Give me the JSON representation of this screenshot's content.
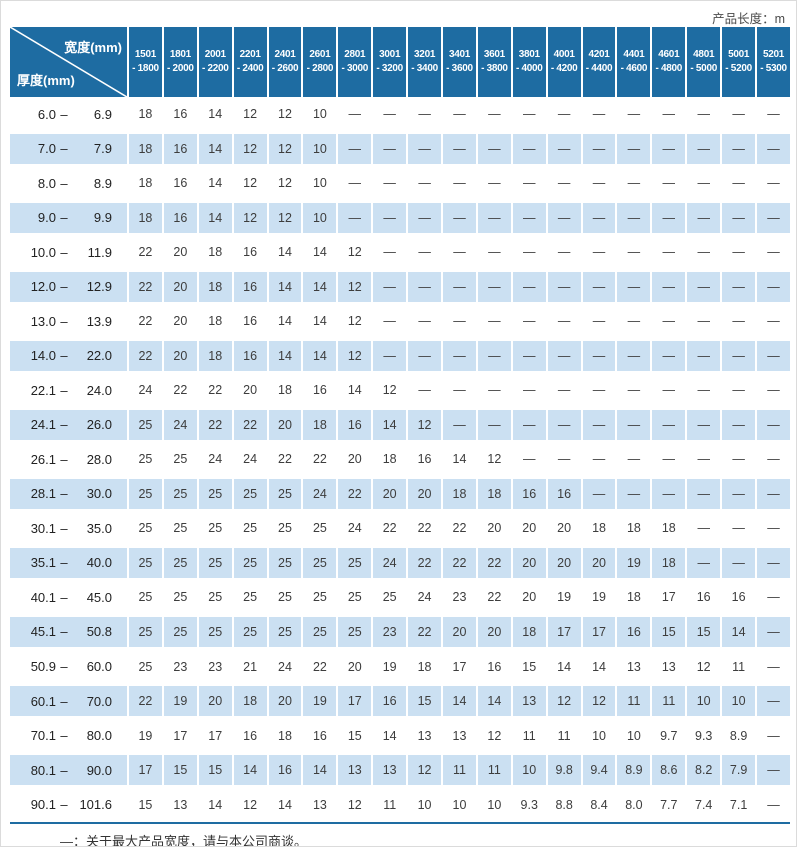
{
  "page": {
    "top_right_label": "产品长度：m",
    "footnote": "—：关于最大产品宽度，请与本公司商谈。"
  },
  "corner": {
    "top_label": "宽度(mm)",
    "bottom_label": "厚度(mm)",
    "range_separator": "–"
  },
  "colors": {
    "header_bg": "#1e6ca2",
    "alt_row_bg": "#cbe0f2",
    "cell_text": "#3d3d3d",
    "row_header_text": "#222222",
    "footnote_text": "#333333",
    "top_label_text": "#4a4a4a"
  },
  "chart_data": {
    "type": "table",
    "title": "",
    "col_axis_label": "宽度(mm)",
    "row_axis_label": "厚度(mm)",
    "unit_note": "产品长度：m",
    "columns": [
      "1501 - 1800",
      "1801 - 2000",
      "2001 - 2200",
      "2201 - 2400",
      "2401 - 2600",
      "2601 - 2800",
      "2801 - 3000",
      "3001 - 3200",
      "3201 - 3400",
      "3401 - 3600",
      "3601 - 3800",
      "3801 - 4000",
      "4001 - 4200",
      "4201 - 4400",
      "4401 - 4600",
      "4601 - 4800",
      "4801 - 5000",
      "5001 - 5200",
      "5201 - 5300"
    ],
    "rows": [
      {
        "range": "6.0 – 6.9",
        "values": [
          "18",
          "16",
          "14",
          "12",
          "12",
          "10",
          "—",
          "—",
          "—",
          "—",
          "—",
          "—",
          "—",
          "—",
          "—",
          "—",
          "—",
          "—",
          "—"
        ]
      },
      {
        "range": "7.0 – 7.9",
        "values": [
          "18",
          "16",
          "14",
          "12",
          "12",
          "10",
          "—",
          "—",
          "—",
          "—",
          "—",
          "—",
          "—",
          "—",
          "—",
          "—",
          "—",
          "—",
          "—"
        ]
      },
      {
        "range": "8.0 – 8.9",
        "values": [
          "18",
          "16",
          "14",
          "12",
          "12",
          "10",
          "—",
          "—",
          "—",
          "—",
          "—",
          "—",
          "—",
          "—",
          "—",
          "—",
          "—",
          "—",
          "—"
        ]
      },
      {
        "range": "9.0 – 9.9",
        "values": [
          "18",
          "16",
          "14",
          "12",
          "12",
          "10",
          "—",
          "—",
          "—",
          "—",
          "—",
          "—",
          "—",
          "—",
          "—",
          "—",
          "—",
          "—",
          "—"
        ]
      },
      {
        "range": "10.0 – 11.9",
        "values": [
          "22",
          "20",
          "18",
          "16",
          "14",
          "14",
          "12",
          "—",
          "—",
          "—",
          "—",
          "—",
          "—",
          "—",
          "—",
          "—",
          "—",
          "—",
          "—"
        ]
      },
      {
        "range": "12.0 – 12.9",
        "values": [
          "22",
          "20",
          "18",
          "16",
          "14",
          "14",
          "12",
          "—",
          "—",
          "—",
          "—",
          "—",
          "—",
          "—",
          "—",
          "—",
          "—",
          "—",
          "—"
        ]
      },
      {
        "range": "13.0 – 13.9",
        "values": [
          "22",
          "20",
          "18",
          "16",
          "14",
          "14",
          "12",
          "—",
          "—",
          "—",
          "—",
          "—",
          "—",
          "—",
          "—",
          "—",
          "—",
          "—",
          "—"
        ]
      },
      {
        "range": "14.0 – 22.0",
        "values": [
          "22",
          "20",
          "18",
          "16",
          "14",
          "14",
          "12",
          "—",
          "—",
          "—",
          "—",
          "—",
          "—",
          "—",
          "—",
          "—",
          "—",
          "—",
          "—"
        ]
      },
      {
        "range": "22.1 – 24.0",
        "values": [
          "24",
          "22",
          "22",
          "20",
          "18",
          "16",
          "14",
          "12",
          "—",
          "—",
          "—",
          "—",
          "—",
          "—",
          "—",
          "—",
          "—",
          "—",
          "—"
        ]
      },
      {
        "range": "24.1 – 26.0",
        "values": [
          "25",
          "24",
          "22",
          "22",
          "20",
          "18",
          "16",
          "14",
          "12",
          "—",
          "—",
          "—",
          "—",
          "—",
          "—",
          "—",
          "—",
          "—",
          "—"
        ]
      },
      {
        "range": "26.1 – 28.0",
        "values": [
          "25",
          "25",
          "24",
          "24",
          "22",
          "22",
          "20",
          "18",
          "16",
          "14",
          "12",
          "—",
          "—",
          "—",
          "—",
          "—",
          "—",
          "—",
          "—"
        ]
      },
      {
        "range": "28.1 – 30.0",
        "values": [
          "25",
          "25",
          "25",
          "25",
          "25",
          "24",
          "22",
          "20",
          "20",
          "18",
          "18",
          "16",
          "16",
          "—",
          "—",
          "—",
          "—",
          "—",
          "—"
        ]
      },
      {
        "range": "30.1 – 35.0",
        "values": [
          "25",
          "25",
          "25",
          "25",
          "25",
          "25",
          "24",
          "22",
          "22",
          "22",
          "20",
          "20",
          "20",
          "18",
          "18",
          "18",
          "—",
          "—",
          "—"
        ]
      },
      {
        "range": "35.1 – 40.0",
        "values": [
          "25",
          "25",
          "25",
          "25",
          "25",
          "25",
          "25",
          "24",
          "22",
          "22",
          "22",
          "20",
          "20",
          "20",
          "19",
          "18",
          "—",
          "—",
          "—"
        ]
      },
      {
        "range": "40.1 – 45.0",
        "values": [
          "25",
          "25",
          "25",
          "25",
          "25",
          "25",
          "25",
          "25",
          "24",
          "23",
          "22",
          "20",
          "19",
          "19",
          "18",
          "17",
          "16",
          "16",
          "—"
        ]
      },
      {
        "range": "45.1 – 50.8",
        "values": [
          "25",
          "25",
          "25",
          "25",
          "25",
          "25",
          "25",
          "23",
          "22",
          "20",
          "20",
          "18",
          "17",
          "17",
          "16",
          "15",
          "15",
          "14",
          "—"
        ]
      },
      {
        "range": "50.9 – 60.0",
        "values": [
          "25",
          "23",
          "23",
          "21",
          "24",
          "22",
          "20",
          "19",
          "18",
          "17",
          "16",
          "15",
          "14",
          "14",
          "13",
          "13",
          "12",
          "11",
          "—"
        ]
      },
      {
        "range": "60.1 – 70.0",
        "values": [
          "22",
          "19",
          "20",
          "18",
          "20",
          "19",
          "17",
          "16",
          "15",
          "14",
          "14",
          "13",
          "12",
          "12",
          "11",
          "11",
          "10",
          "10",
          "—"
        ]
      },
      {
        "range": "70.1 – 80.0",
        "values": [
          "19",
          "17",
          "17",
          "16",
          "18",
          "16",
          "15",
          "14",
          "13",
          "13",
          "12",
          "11",
          "11",
          "10",
          "10",
          "9.7",
          "9.3",
          "8.9",
          "—"
        ]
      },
      {
        "range": "80.1 – 90.0",
        "values": [
          "17",
          "15",
          "15",
          "14",
          "16",
          "14",
          "13",
          "13",
          "12",
          "11",
          "11",
          "10",
          "9.8",
          "9.4",
          "8.9",
          "8.6",
          "8.2",
          "7.9",
          "—"
        ]
      },
      {
        "range": "90.1 – 101.6",
        "values": [
          "15",
          "13",
          "14",
          "12",
          "14",
          "13",
          "12",
          "11",
          "10",
          "10",
          "10",
          "9.3",
          "8.8",
          "8.4",
          "8.0",
          "7.7",
          "7.4",
          "7.1",
          "—"
        ]
      }
    ]
  }
}
